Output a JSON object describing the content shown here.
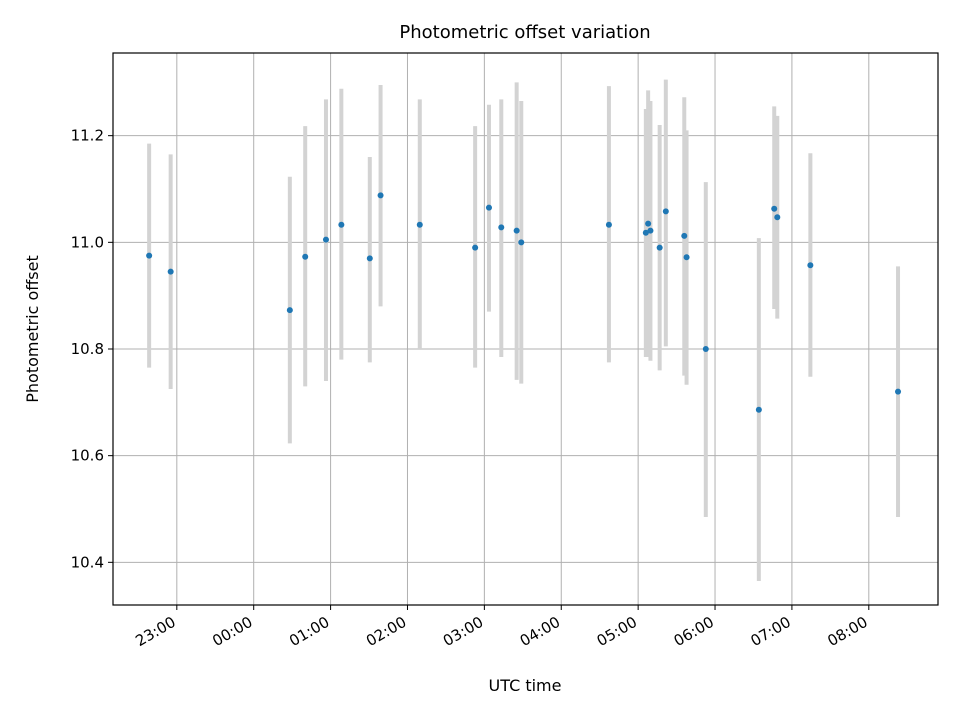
{
  "chart_data": {
    "type": "scatter",
    "title": "Photometric offset variation",
    "xlabel": "UTC time",
    "ylabel": "Photometric offset",
    "grid": true,
    "x_unit": "hours since 00:00 UTC",
    "xlim": [
      -1.83,
      8.9
    ],
    "ylim": [
      10.32,
      11.355
    ],
    "xticks": [
      {
        "value": -1,
        "label": "23:00"
      },
      {
        "value": 0,
        "label": "00:00"
      },
      {
        "value": 1,
        "label": "01:00"
      },
      {
        "value": 2,
        "label": "02:00"
      },
      {
        "value": 3,
        "label": "03:00"
      },
      {
        "value": 4,
        "label": "04:00"
      },
      {
        "value": 5,
        "label": "05:00"
      },
      {
        "value": 6,
        "label": "06:00"
      },
      {
        "value": 7,
        "label": "07:00"
      },
      {
        "value": 8,
        "label": "08:00"
      }
    ],
    "yticks": [
      {
        "value": 10.4,
        "label": "10.4"
      },
      {
        "value": 10.6,
        "label": "10.6"
      },
      {
        "value": 10.8,
        "label": "10.8"
      },
      {
        "value": 11.0,
        "label": "11.0"
      },
      {
        "value": 11.2,
        "label": "11.2"
      }
    ],
    "colors": {
      "point": "#1f77b4",
      "errorbar": "#d3d3d3",
      "grid": "#b0b0b0",
      "axes": "#000000"
    },
    "points": [
      {
        "x": -1.36,
        "y": 10.975,
        "lo": 10.765,
        "hi": 11.185
      },
      {
        "x": -1.08,
        "y": 10.945,
        "lo": 10.725,
        "hi": 11.165
      },
      {
        "x": 0.47,
        "y": 10.873,
        "lo": 10.623,
        "hi": 11.123
      },
      {
        "x": 0.67,
        "y": 10.973,
        "lo": 10.73,
        "hi": 11.218
      },
      {
        "x": 0.94,
        "y": 11.005,
        "lo": 10.74,
        "hi": 11.268
      },
      {
        "x": 1.14,
        "y": 11.033,
        "lo": 10.78,
        "hi": 11.288
      },
      {
        "x": 1.51,
        "y": 10.97,
        "lo": 10.775,
        "hi": 11.16
      },
      {
        "x": 1.65,
        "y": 11.088,
        "lo": 10.88,
        "hi": 11.295
      },
      {
        "x": 2.16,
        "y": 11.033,
        "lo": 10.8,
        "hi": 11.268
      },
      {
        "x": 2.88,
        "y": 10.99,
        "lo": 10.765,
        "hi": 11.218
      },
      {
        "x": 3.06,
        "y": 11.065,
        "lo": 10.87,
        "hi": 11.258
      },
      {
        "x": 3.22,
        "y": 11.028,
        "lo": 10.785,
        "hi": 11.268
      },
      {
        "x": 3.42,
        "y": 11.022,
        "lo": 10.742,
        "hi": 11.3
      },
      {
        "x": 3.48,
        "y": 11.0,
        "lo": 10.735,
        "hi": 11.265
      },
      {
        "x": 4.62,
        "y": 11.033,
        "lo": 10.775,
        "hi": 11.293
      },
      {
        "x": 5.1,
        "y": 11.018,
        "lo": 10.785,
        "hi": 11.25
      },
      {
        "x": 5.13,
        "y": 11.035,
        "lo": 10.785,
        "hi": 11.285
      },
      {
        "x": 5.16,
        "y": 11.022,
        "lo": 10.778,
        "hi": 11.265
      },
      {
        "x": 5.28,
        "y": 10.99,
        "lo": 10.76,
        "hi": 11.22
      },
      {
        "x": 5.36,
        "y": 11.058,
        "lo": 10.805,
        "hi": 11.305
      },
      {
        "x": 5.6,
        "y": 11.012,
        "lo": 10.75,
        "hi": 11.272
      },
      {
        "x": 5.63,
        "y": 10.972,
        "lo": 10.733,
        "hi": 11.21
      },
      {
        "x": 5.88,
        "y": 10.8,
        "lo": 10.485,
        "hi": 11.113
      },
      {
        "x": 6.57,
        "y": 10.686,
        "lo": 10.365,
        "hi": 11.008
      },
      {
        "x": 6.77,
        "y": 11.063,
        "lo": 10.875,
        "hi": 11.255
      },
      {
        "x": 6.81,
        "y": 11.047,
        "lo": 10.857,
        "hi": 11.237
      },
      {
        "x": 7.24,
        "y": 10.957,
        "lo": 10.748,
        "hi": 11.167
      },
      {
        "x": 8.38,
        "y": 10.72,
        "lo": 10.485,
        "hi": 10.955
      }
    ]
  }
}
